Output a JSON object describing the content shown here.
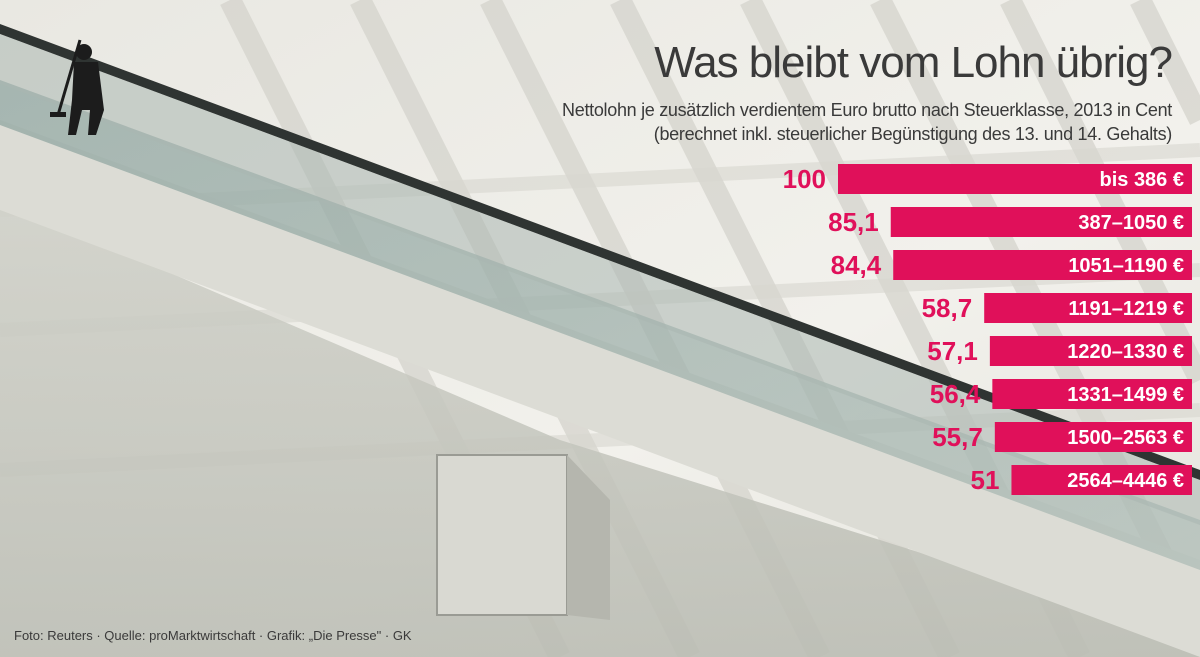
{
  "title": "Was bleibt vom Lohn übrig?",
  "subtitle_lines": [
    "Nettolohn je zusätzlich verdientem Euro brutto nach Steuerklasse, 2013 in Cent",
    "(berechnet inkl. steuerlicher Begünstigung des 13. und 14. Gehalts)"
  ],
  "credit": "Foto: Reuters · Quelle: proMarktwirtschaft · Grafik: „Die Presse\" · GK",
  "colors": {
    "bar": "#e0105a",
    "bar_text": "#ffffff",
    "value_text": "#e0105a"
  },
  "chart_data": {
    "type": "bar",
    "orientation": "horizontal",
    "categories": [
      "bis 386 €",
      "387–1050 €",
      "1051–1190 €",
      "1191–1219 €",
      "1220–1330 €",
      "1331–1499 €",
      "1500–2563 €",
      "2564–4446 €"
    ],
    "values": [
      100,
      85.1,
      84.4,
      58.7,
      57.1,
      56.4,
      55.7,
      51
    ],
    "value_labels": [
      "100",
      "85,1",
      "84,4",
      "58,7",
      "57,1",
      "56,4",
      "55,7",
      "51"
    ],
    "title": "Was bleibt vom Lohn übrig?",
    "xlim": [
      0,
      100
    ],
    "grid": false,
    "legend": "none"
  }
}
